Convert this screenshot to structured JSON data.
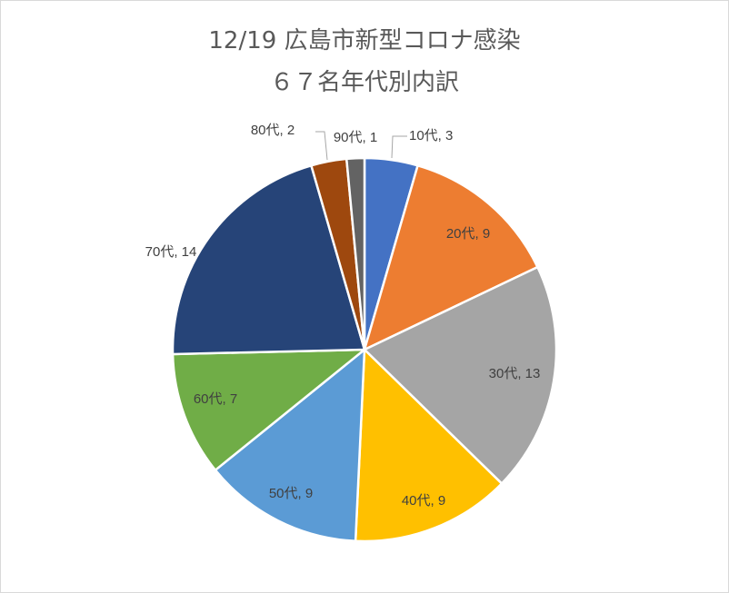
{
  "chart_data": {
    "type": "pie",
    "title": "12/19 広島市新型コロナ感染",
    "subtitle": "６７名年代別内訳",
    "slices": [
      {
        "label": "10代",
        "value": 3,
        "color": "#4472C4",
        "text": "10代, 3"
      },
      {
        "label": "20代",
        "value": 9,
        "color": "#ED7D31",
        "text": "20代, 9"
      },
      {
        "label": "30代",
        "value": 13,
        "color": "#A5A5A5",
        "text": "30代, 13"
      },
      {
        "label": "40代",
        "value": 9,
        "color": "#FFC000",
        "text": "40代, 9"
      },
      {
        "label": "50代",
        "value": 9,
        "color": "#5B9BD5",
        "text": "50代, 9"
      },
      {
        "label": "60代",
        "value": 7,
        "color": "#70AD47",
        "text": "60代, 7"
      },
      {
        "label": "70代",
        "value": 14,
        "color": "#264478",
        "text": "70代, 14"
      },
      {
        "label": "80代",
        "value": 2,
        "color": "#9E480E",
        "text": "80代, 2"
      },
      {
        "label": "90代",
        "value": 1,
        "color": "#636363",
        "text": "90代, 1"
      }
    ]
  }
}
